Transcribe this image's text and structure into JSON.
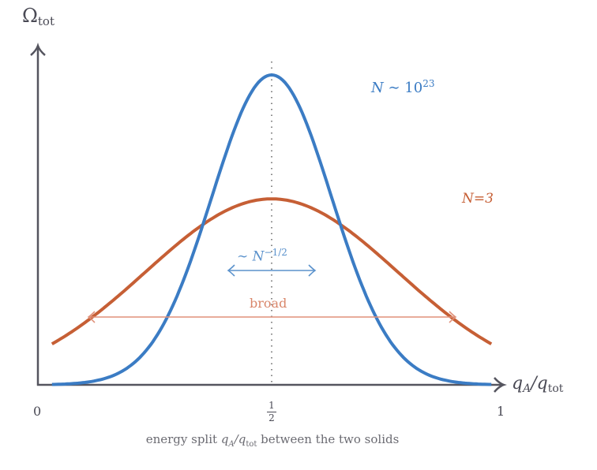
{
  "chart_data": {
    "type": "line",
    "title": "",
    "xlabel": "q_A/q_tot",
    "ylabel": "Ω_tot",
    "caption": "energy split q_A/q_tot between the two solids",
    "x_ticks": [
      "0",
      "1/2",
      "1"
    ],
    "xlim": [
      0,
      1
    ],
    "ylim": [
      0,
      1
    ],
    "grid": false,
    "legend": "inline annotations",
    "vertical_reference_line": {
      "x": 0.5,
      "style": "dotted"
    },
    "series": [
      {
        "name": "N ~ 10^23",
        "color": "#3b7cc4",
        "shape": "narrow gaussian",
        "center": 0.5,
        "peak_relative": 1.0,
        "sigma_relative": 0.128,
        "x": [
          0.03,
          0.1,
          0.2,
          0.3,
          0.4,
          0.5,
          0.6,
          0.7,
          0.8,
          0.9,
          0.97
        ],
        "y": [
          0.0,
          0.01,
          0.07,
          0.31,
          0.75,
          1.0,
          0.75,
          0.31,
          0.07,
          0.01,
          0.0
        ]
      },
      {
        "name": "N=3",
        "color": "#c65f35",
        "shape": "broad gaussian",
        "center": 0.5,
        "peak_relative": 0.6,
        "sigma_relative": 0.27,
        "x": [
          0.03,
          0.1,
          0.2,
          0.3,
          0.4,
          0.5,
          0.6,
          0.7,
          0.8,
          0.9,
          0.97
        ],
        "y": [
          0.13,
          0.2,
          0.32,
          0.45,
          0.56,
          0.6,
          0.56,
          0.45,
          0.32,
          0.2,
          0.13
        ]
      }
    ],
    "annotations": [
      {
        "text": "~ N^{-1/2}",
        "type": "double-arrow",
        "color": "#5b92cc",
        "x_from": 0.41,
        "x_to": 0.6
      },
      {
        "text": "broad",
        "type": "double-arrow",
        "color": "#d9866a",
        "x_from": 0.12,
        "x_to": 0.9
      }
    ]
  },
  "labels": {
    "y_axis": {
      "main": "Ω",
      "sub": "tot"
    },
    "x_axis": {
      "q": "q",
      "qsub": "A",
      "slash": "/q",
      "sub": "tot"
    },
    "tick_0": "0",
    "tick_half_num": "1",
    "tick_half_den": "2",
    "tick_1": "1",
    "caption_pre": "energy split ",
    "caption_q": "q",
    "caption_qsub": "A",
    "caption_slash": "/q",
    "caption_sub": "tot",
    "caption_post": " between the two solids",
    "blue_N": "N",
    "blue_sim": " ∼ 10",
    "blue_exp": "23",
    "orange": "N=3",
    "width_sim": "∼ N",
    "width_exp": "−1/2",
    "broad": "broad"
  },
  "colors": {
    "axis": "#55555f",
    "blue": "#3b7cc4",
    "orange": "#c65f35",
    "width_arrow": "#5b92cc",
    "broad_arrow": "#e0917a",
    "dotted": "#888888"
  }
}
